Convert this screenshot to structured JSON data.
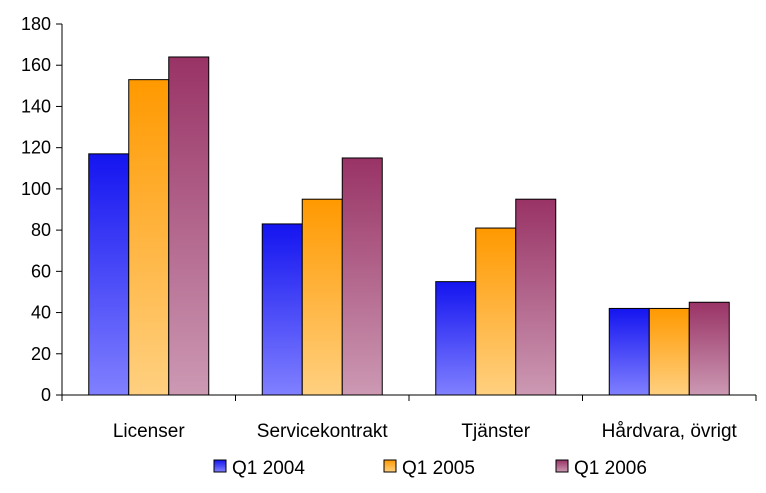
{
  "chart_data": {
    "type": "bar",
    "title": "",
    "xlabel": "",
    "ylabel": "",
    "categories": [
      "Licenser",
      "Servicekontrakt",
      "Tjänster",
      "Hårdvara, övrigt"
    ],
    "series": [
      {
        "name": "Q1 2004",
        "values": [
          117,
          83,
          55,
          42
        ]
      },
      {
        "name": "Q1 2005",
        "values": [
          153,
          95,
          81,
          42
        ]
      },
      {
        "name": "Q1 2006",
        "values": [
          164,
          115,
          95,
          45
        ]
      }
    ],
    "ylim": [
      0,
      180
    ],
    "yticks": [
      "0",
      "20",
      "40",
      "60",
      "80",
      "100",
      "120",
      "140",
      "160",
      "180"
    ],
    "grid": false,
    "legend_position": "bottom",
    "colors": {
      "Q1 2004": {
        "top": "#1414f0",
        "bottom": "#8080ff"
      },
      "Q1 2005": {
        "top": "#ff9900",
        "bottom": "#ffd080"
      },
      "Q1 2006": {
        "top": "#993366",
        "bottom": "#cc99b3"
      }
    }
  }
}
